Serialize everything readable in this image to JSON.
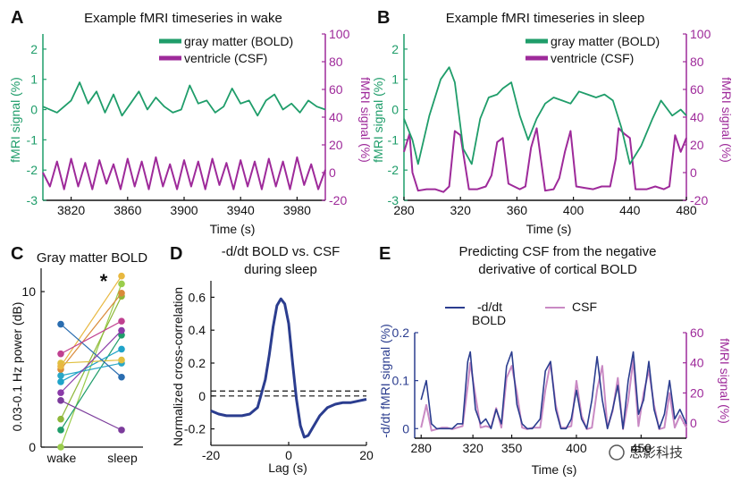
{
  "colors": {
    "bold": "#1f9d6a",
    "csf": "#9e2a9a",
    "deriv": "#2b3d8f",
    "csf_light": "#c98ac4",
    "dash": "#111111"
  },
  "chart_data": [
    {
      "id": "A",
      "type": "line",
      "title": "Example fMRI timeseries in wake",
      "xlabel": "Time (s)",
      "ylabel_left": "fMRI signal (%)",
      "ylabel_right": "fMRI signal (%)",
      "xlim": [
        3800,
        4000
      ],
      "ylim_left": [
        -3,
        2.5
      ],
      "ylim_right": [
        -20,
        100
      ],
      "xticks": [
        3820,
        3860,
        3900,
        3940,
        3980
      ],
      "yticks_left": [
        -3,
        -2,
        -1,
        0,
        1,
        2
      ],
      "yticks_right": [
        -20,
        0,
        20,
        40,
        60,
        80,
        100
      ],
      "legend_position": "top-right",
      "series": [
        {
          "name": "gray matter (BOLD)",
          "axis": "left",
          "x": [
            3800,
            3810,
            3820,
            3826,
            3832,
            3838,
            3844,
            3850,
            3856,
            3862,
            3868,
            3874,
            3880,
            3886,
            3892,
            3898,
            3904,
            3910,
            3916,
            3922,
            3928,
            3934,
            3940,
            3946,
            3952,
            3958,
            3964,
            3970,
            3976,
            3982,
            3988,
            3994,
            4000
          ],
          "values": [
            0.1,
            -0.1,
            0.3,
            0.9,
            0.2,
            0.6,
            -0.1,
            0.5,
            -0.2,
            0.2,
            0.6,
            0.0,
            0.4,
            0.1,
            -0.1,
            0.0,
            0.8,
            0.2,
            0.3,
            -0.1,
            0.1,
            0.7,
            0.2,
            0.3,
            -0.2,
            0.3,
            0.5,
            0.0,
            0.2,
            -0.1,
            0.3,
            0.1,
            0.0
          ]
        },
        {
          "name": "ventricle (CSF)",
          "axis": "right",
          "x": [
            3800,
            3805,
            3810,
            3815,
            3820,
            3825,
            3830,
            3835,
            3840,
            3845,
            3850,
            3855,
            3860,
            3865,
            3870,
            3875,
            3880,
            3885,
            3890,
            3895,
            3900,
            3905,
            3910,
            3915,
            3920,
            3925,
            3930,
            3935,
            3940,
            3945,
            3950,
            3955,
            3960,
            3965,
            3970,
            3975,
            3980,
            3985,
            3990,
            3995,
            4000
          ],
          "values": [
            0,
            -10,
            8,
            -12,
            10,
            -10,
            7,
            -12,
            9,
            -8,
            6,
            -12,
            10,
            -10,
            8,
            -12,
            11,
            -10,
            6,
            -12,
            9,
            -10,
            8,
            -12,
            10,
            -9,
            7,
            -12,
            9,
            -10,
            8,
            -12,
            10,
            -10,
            8,
            -12,
            11,
            -9,
            6,
            -12,
            2
          ]
        }
      ]
    },
    {
      "id": "B",
      "type": "line",
      "title": "Example fMRI timeseries in sleep",
      "xlabel": "Time (s)",
      "ylabel_left": "fMRI signal (%)",
      "ylabel_right": "fMRI signal (%)",
      "xlim": [
        280,
        480
      ],
      "ylim_left": [
        -3,
        2.5
      ],
      "ylim_right": [
        -20,
        100
      ],
      "xticks": [
        280,
        320,
        360,
        400,
        440,
        480
      ],
      "yticks_left": [
        -3,
        -2,
        -1,
        0,
        1,
        2
      ],
      "yticks_right": [
        -20,
        0,
        20,
        40,
        60,
        80,
        100
      ],
      "legend_position": "top-right",
      "series": [
        {
          "name": "gray matter (BOLD)",
          "axis": "left",
          "x": [
            280,
            286,
            290,
            298,
            306,
            312,
            316,
            322,
            328,
            334,
            340,
            346,
            350,
            356,
            362,
            368,
            374,
            380,
            386,
            392,
            398,
            404,
            410,
            416,
            422,
            428,
            434,
            440,
            448,
            456,
            462,
            470,
            476,
            480
          ],
          "values": [
            -0.3,
            -1.0,
            -1.8,
            -0.2,
            1.0,
            1.4,
            0.9,
            -1.3,
            -1.8,
            -0.3,
            0.4,
            0.5,
            0.7,
            0.9,
            -0.2,
            -1.0,
            -0.3,
            0.2,
            0.4,
            0.3,
            0.2,
            0.6,
            0.5,
            0.4,
            0.5,
            0.3,
            -0.6,
            -1.8,
            -1.2,
            -0.3,
            0.3,
            -0.2,
            0.0,
            -0.2
          ]
        },
        {
          "name": "ventricle (CSF)",
          "axis": "right",
          "x": [
            280,
            284,
            286,
            290,
            296,
            302,
            308,
            312,
            316,
            320,
            326,
            332,
            338,
            342,
            346,
            350,
            354,
            358,
            362,
            366,
            370,
            374,
            380,
            386,
            390,
            394,
            398,
            402,
            408,
            414,
            420,
            426,
            430,
            432,
            436,
            440,
            444,
            452,
            458,
            464,
            468,
            472,
            476,
            480
          ],
          "values": [
            15,
            28,
            0,
            -13,
            -12,
            -12,
            -14,
            -10,
            30,
            27,
            -12,
            -12,
            -10,
            -2,
            22,
            25,
            -8,
            -10,
            -12,
            -10,
            18,
            32,
            -13,
            -12,
            -4,
            15,
            30,
            -10,
            -11,
            -12,
            -10,
            -10,
            10,
            32,
            28,
            25,
            -12,
            -12,
            -10,
            -12,
            -10,
            27,
            15,
            25
          ]
        }
      ]
    },
    {
      "id": "C",
      "type": "scatter",
      "title": "Gray matter BOLD",
      "annotation": "*",
      "ylabel": "0.03-0.1 Hz power (dB)",
      "categories": [
        "wake",
        "sleep"
      ],
      "ylim": [
        0,
        11.5
      ],
      "yticks": [
        0,
        10
      ],
      "pairs": [
        {
          "wake": 0.0,
          "sleep": 10.5,
          "color": "#9acd4c"
        },
        {
          "wake": 1.1,
          "sleep": 7.2,
          "color": "#1f9d6a"
        },
        {
          "wake": 1.8,
          "sleep": 9.7,
          "color": "#8fb83a"
        },
        {
          "wake": 3.0,
          "sleep": 1.1,
          "color": "#7b3b9b"
        },
        {
          "wake": 4.2,
          "sleep": 6.3,
          "color": "#1fa3c9"
        },
        {
          "wake": 4.6,
          "sleep": 5.4,
          "color": "#2aa7c7"
        },
        {
          "wake": 5.0,
          "sleep": 9.9,
          "color": "#d98b3a"
        },
        {
          "wake": 5.4,
          "sleep": 5.6,
          "color": "#e0c040"
        },
        {
          "wake": 5.2,
          "sleep": 11.0,
          "color": "#e8b840"
        },
        {
          "wake": 7.9,
          "sleep": 4.5,
          "color": "#2a6db0"
        },
        {
          "wake": 6.0,
          "sleep": 8.1,
          "color": "#c04090"
        },
        {
          "wake": 3.5,
          "sleep": 7.5,
          "color": "#8a3aa8"
        }
      ]
    },
    {
      "id": "D",
      "type": "line",
      "title": "-d/dt BOLD vs. CSF during sleep",
      "title_lines": [
        "-d/dt BOLD vs. CSF",
        "during sleep"
      ],
      "xlabel": "Lag (s)",
      "ylabel": "Normalized cross-correlation",
      "xlim": [
        -20,
        20
      ],
      "ylim": [
        -0.3,
        0.7
      ],
      "xticks": [
        -20,
        0,
        20
      ],
      "yticks": [
        -0.2,
        0,
        0.2,
        0.4,
        0.6
      ],
      "series": [
        {
          "name": "",
          "x": [
            -20,
            -18,
            -16,
            -14,
            -12,
            -10,
            -8,
            -6,
            -5,
            -4,
            -3,
            -2,
            -1,
            0,
            1,
            2,
            3,
            4,
            5,
            6,
            8,
            10,
            12,
            14,
            16,
            18,
            20
          ],
          "values": [
            -0.09,
            -0.11,
            -0.12,
            -0.12,
            -0.12,
            -0.11,
            -0.07,
            0.1,
            0.25,
            0.42,
            0.55,
            0.59,
            0.56,
            0.44,
            0.2,
            -0.02,
            -0.18,
            -0.25,
            -0.24,
            -0.2,
            -0.12,
            -0.07,
            -0.05,
            -0.04,
            -0.04,
            -0.03,
            -0.02
          ]
        }
      ],
      "threshold_lines": [
        0.03,
        0.0
      ]
    },
    {
      "id": "E",
      "type": "line",
      "title": "Predicting CSF from the negative derivative of cortical BOLD",
      "title_lines": [
        "Predicting CSF from the negative",
        "derivative of cortical BOLD"
      ],
      "xlabel": "Time (s)",
      "ylabel_left": "-d/dt fMRI signal (%)",
      "ylabel_right": "fMRI signal (%)",
      "xlim": [
        275,
        485
      ],
      "ylim_left": [
        -0.02,
        0.2
      ],
      "ylim_right": [
        -10,
        60
      ],
      "xticks": [
        280,
        320,
        350,
        400,
        450
      ],
      "yticks_left": [
        0,
        0.1,
        0.2
      ],
      "yticks_right": [
        0,
        20,
        40,
        60
      ],
      "series": [
        {
          "name": "-d/dt BOLD",
          "legend_lines": [
            "-d/dt",
            "BOLD"
          ],
          "axis": "left",
          "x": [
            280,
            284,
            288,
            292,
            296,
            300,
            304,
            308,
            312,
            316,
            318,
            322,
            326,
            330,
            334,
            338,
            342,
            346,
            350,
            354,
            358,
            362,
            366,
            372,
            376,
            380,
            384,
            388,
            392,
            396,
            400,
            404,
            408,
            412,
            416,
            420,
            424,
            428,
            432,
            436,
            440,
            444,
            448,
            452,
            456,
            460,
            464,
            468,
            472,
            476,
            480,
            485
          ],
          "values": [
            0.06,
            0.1,
            0.01,
            0.0,
            0.0,
            0.0,
            0.0,
            0.01,
            0.01,
            0.14,
            0.16,
            0.04,
            0.01,
            0.02,
            0.0,
            0.04,
            0.01,
            0.13,
            0.16,
            0.05,
            0.01,
            0.0,
            0.0,
            0.02,
            0.12,
            0.14,
            0.04,
            0.0,
            0.0,
            0.02,
            0.08,
            0.02,
            0.0,
            0.06,
            0.15,
            0.06,
            0.0,
            0.04,
            0.09,
            0.0,
            0.1,
            0.16,
            0.03,
            0.06,
            0.14,
            0.04,
            0.0,
            0.03,
            0.1,
            0.02,
            0.04,
            0.01
          ]
        },
        {
          "name": "CSF",
          "axis": "right",
          "x": [
            280,
            284,
            288,
            292,
            296,
            300,
            304,
            308,
            312,
            316,
            318,
            322,
            326,
            330,
            334,
            338,
            342,
            346,
            350,
            354,
            358,
            362,
            366,
            372,
            376,
            380,
            384,
            388,
            392,
            396,
            400,
            404,
            408,
            412,
            416,
            420,
            424,
            428,
            432,
            436,
            440,
            444,
            448,
            452,
            456,
            460,
            464,
            468,
            472,
            476,
            480,
            485
          ],
          "values": [
            -3,
            12,
            -5,
            -4,
            -3,
            -3,
            -4,
            -3,
            -2,
            25,
            40,
            18,
            -3,
            -2,
            -3,
            10,
            -3,
            30,
            38,
            20,
            -3,
            -4,
            -3,
            -3,
            22,
            40,
            12,
            -3,
            -3,
            -2,
            28,
            5,
            -4,
            -3,
            22,
            38,
            -3,
            8,
            30,
            -4,
            15,
            42,
            -2,
            20,
            35,
            12,
            -4,
            -3,
            20,
            -3,
            5,
            -3
          ]
        }
      ]
    }
  ],
  "watermark": "思影科技"
}
